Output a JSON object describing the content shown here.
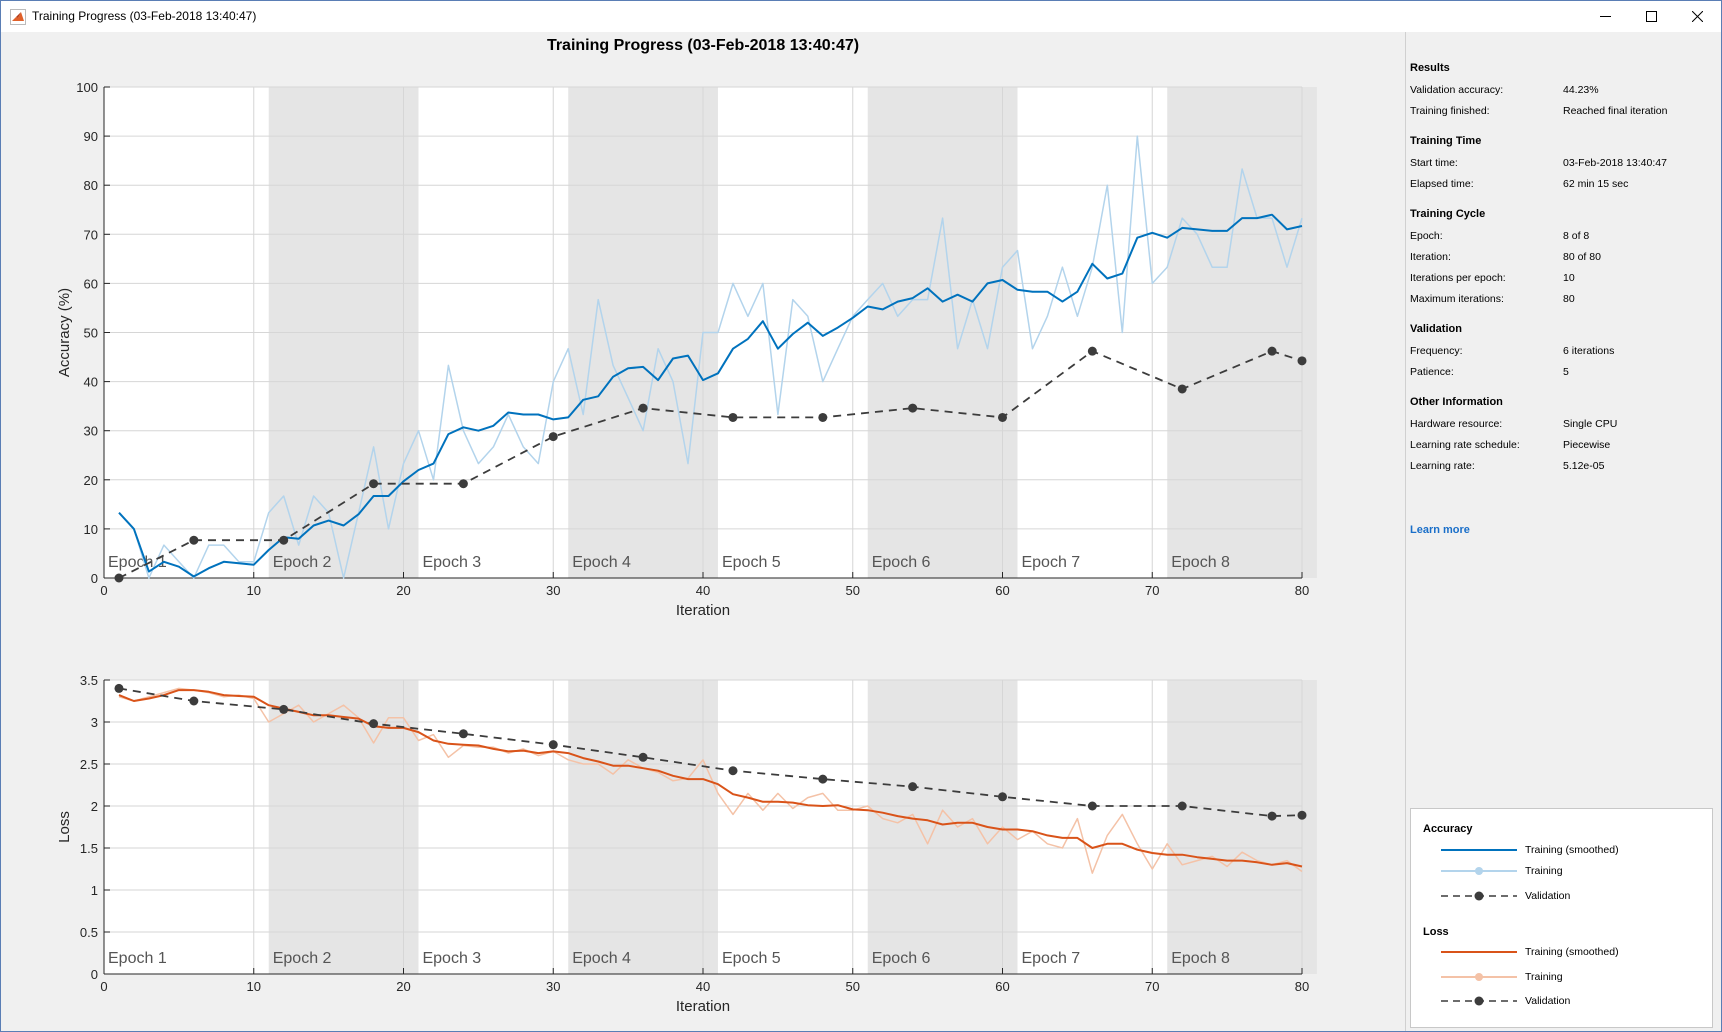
{
  "window": {
    "title": "Training Progress (03-Feb-2018 13:40:47)",
    "controls": {
      "minimize": "minimize",
      "maximize": "maximize",
      "close": "close"
    }
  },
  "figure_title": "Training Progress (03-Feb-2018 13:40:47)",
  "colors": {
    "accuracy_smoothed": "#0072bd",
    "accuracy_raw": "#b3d4ec",
    "loss_smoothed": "#d95319",
    "loss_raw": "#f4c2a7",
    "validation": "#3c3c3c",
    "epoch_shade": "#e5e5e5",
    "link": "#1a6fc9"
  },
  "panel": {
    "results": {
      "heading": "Results",
      "rows": [
        {
          "label": "Validation accuracy:",
          "value": "44.23%"
        },
        {
          "label": "Training finished:",
          "value": "Reached final iteration"
        }
      ]
    },
    "training_time": {
      "heading": "Training Time",
      "rows": [
        {
          "label": "Start time:",
          "value": "03-Feb-2018 13:40:47"
        },
        {
          "label": "Elapsed time:",
          "value": "62 min 15 sec"
        }
      ]
    },
    "training_cycle": {
      "heading": "Training Cycle",
      "rows": [
        {
          "label": "Epoch:",
          "value": "8 of 8"
        },
        {
          "label": "Iteration:",
          "value": "80 of 80"
        },
        {
          "label": "Iterations per epoch:",
          "value": "10"
        },
        {
          "label": "Maximum iterations:",
          "value": "80"
        }
      ]
    },
    "validation": {
      "heading": "Validation",
      "rows": [
        {
          "label": "Frequency:",
          "value": "6 iterations"
        },
        {
          "label": "Patience:",
          "value": "5"
        }
      ]
    },
    "other_information": {
      "heading": "Other Information",
      "rows": [
        {
          "label": "Hardware resource:",
          "value": "Single CPU"
        },
        {
          "label": "Learning rate schedule:",
          "value": "Piecewise"
        },
        {
          "label": "Learning rate:",
          "value": "5.12e-05"
        }
      ]
    },
    "learn_more": "Learn more"
  },
  "legend": {
    "accuracy_heading": "Accuracy",
    "loss_heading": "Loss",
    "accuracy_items": [
      "Training (smoothed)",
      "Training",
      "Validation"
    ],
    "loss_items": [
      "Training (smoothed)",
      "Training",
      "Validation"
    ]
  },
  "chart_data": [
    {
      "type": "line",
      "title": "",
      "xlabel": "Iteration",
      "ylabel": "Accuracy (%)",
      "xlim": [
        0,
        80
      ],
      "ylim": [
        0,
        100
      ],
      "xticks": [
        0,
        10,
        20,
        30,
        40,
        50,
        60,
        70,
        80
      ],
      "yticks": [
        0,
        10,
        20,
        30,
        40,
        50,
        60,
        70,
        80,
        90,
        100
      ],
      "ytick_labels": [
        "0",
        "10",
        "20",
        "30",
        "40",
        "50",
        "60",
        "70",
        "80",
        "90",
        "100"
      ],
      "grid": true,
      "epoch_labels": [
        "Epoch 1",
        "Epoch 2",
        "Epoch 3",
        "Epoch 4",
        "Epoch 5",
        "Epoch 6",
        "Epoch 7",
        "Epoch 8"
      ],
      "series": [
        {
          "name": "Training",
          "x": [
            1,
            2,
            3,
            4,
            5,
            6,
            7,
            8,
            9,
            10,
            11,
            12,
            13,
            14,
            15,
            16,
            17,
            18,
            19,
            20,
            21,
            22,
            23,
            24,
            25,
            26,
            27,
            28,
            29,
            30,
            31,
            32,
            33,
            34,
            35,
            36,
            37,
            38,
            39,
            40,
            41,
            42,
            43,
            44,
            45,
            46,
            47,
            48,
            49,
            50,
            51,
            52,
            53,
            54,
            55,
            56,
            57,
            58,
            59,
            60,
            61,
            62,
            63,
            64,
            65,
            66,
            67,
            68,
            69,
            70,
            71,
            72,
            73,
            74,
            75,
            76,
            77,
            78,
            79,
            80
          ],
          "values": [
            13.3,
            10,
            0,
            6.7,
            3.3,
            0,
            6.7,
            6.7,
            3.3,
            3.3,
            13.3,
            16.7,
            6.7,
            16.7,
            13.3,
            0,
            13.3,
            26.7,
            10,
            23.3,
            30,
            20,
            43.3,
            30,
            23.3,
            26.7,
            33.3,
            26.7,
            23.3,
            40,
            46.7,
            33.3,
            56.7,
            43.3,
            36.7,
            30,
            46.7,
            40,
            23.3,
            50,
            50,
            60,
            53.3,
            60,
            33.3,
            56.7,
            53.3,
            40,
            46.7,
            53.3,
            56.7,
            60,
            53.3,
            56.7,
            56.7,
            73.3,
            46.7,
            56.7,
            46.7,
            63.3,
            66.7,
            46.7,
            53.3,
            63.3,
            53.3,
            63.3,
            80,
            50,
            90,
            60,
            63.3,
            73.3,
            70,
            63.3,
            63.3,
            83.3,
            73.3,
            73.3,
            63.3,
            73.3
          ]
        },
        {
          "name": "Training (smoothed)",
          "x": [
            1,
            2,
            3,
            4,
            5,
            6,
            7,
            8,
            9,
            10,
            11,
            12,
            13,
            14,
            15,
            16,
            17,
            18,
            19,
            20,
            21,
            22,
            23,
            24,
            25,
            26,
            27,
            28,
            29,
            30,
            31,
            32,
            33,
            34,
            35,
            36,
            37,
            38,
            39,
            40,
            41,
            42,
            43,
            44,
            45,
            46,
            47,
            48,
            49,
            50,
            51,
            52,
            53,
            54,
            55,
            56,
            57,
            58,
            59,
            60,
            61,
            62,
            63,
            64,
            65,
            66,
            67,
            68,
            69,
            70,
            71,
            72,
            73,
            74,
            75,
            76,
            77,
            78,
            79,
            80
          ],
          "values": [
            13.3,
            10,
            1.3,
            3.3,
            2.3,
            0.3,
            2,
            3.3,
            3,
            2.7,
            5.7,
            8.3,
            8,
            10.7,
            11.7,
            10.7,
            13,
            16.7,
            16.7,
            19.7,
            22,
            23.3,
            29.3,
            30.7,
            30,
            31,
            33.7,
            33.3,
            33.3,
            32.3,
            32.7,
            36.3,
            37,
            41,
            42.7,
            43,
            40.3,
            44.7,
            45.3,
            40.3,
            41.7,
            46.7,
            48.7,
            52.3,
            46.7,
            49.7,
            52,
            49.3,
            51,
            53,
            55.3,
            54.7,
            56.3,
            57,
            59,
            56.3,
            57.7,
            56.3,
            60,
            60.7,
            58.7,
            58.3,
            58.3,
            56.3,
            58.3,
            64,
            61,
            62,
            69.3,
            70.3,
            69.3,
            71.3,
            71,
            70.7,
            70.7,
            73.3,
            73.3,
            74,
            71,
            71.7
          ]
        },
        {
          "name": "Validation",
          "x": [
            1,
            6,
            12,
            18,
            24,
            30,
            36,
            42,
            48,
            54,
            60,
            66,
            72,
            78,
            80
          ],
          "values": [
            0,
            7.7,
            7.7,
            19.2,
            19.2,
            28.8,
            34.6,
            32.7,
            32.7,
            34.6,
            32.7,
            46.2,
            38.5,
            46.2,
            44.23
          ]
        }
      ]
    },
    {
      "type": "line",
      "title": "",
      "xlabel": "Iteration",
      "ylabel": "Loss",
      "xlim": [
        0,
        80
      ],
      "ylim": [
        0,
        3.5
      ],
      "xticks": [
        0,
        10,
        20,
        30,
        40,
        50,
        60,
        70,
        80
      ],
      "yticks": [
        0,
        0.5,
        1,
        1.5,
        2,
        2.5,
        3,
        3.5
      ],
      "ytick_labels": [
        "0",
        "0.5",
        "1",
        "1.5",
        "2",
        "2.5",
        "3",
        "3.5"
      ],
      "grid": true,
      "epoch_labels": [
        "Epoch 1",
        "Epoch 2",
        "Epoch 3",
        "Epoch 4",
        "Epoch 5",
        "Epoch 6",
        "Epoch 7",
        "Epoch 8"
      ],
      "series": [
        {
          "name": "Training",
          "x": [
            1,
            2,
            3,
            4,
            5,
            6,
            7,
            8,
            9,
            10,
            11,
            12,
            13,
            14,
            15,
            16,
            17,
            18,
            19,
            20,
            21,
            22,
            23,
            24,
            25,
            26,
            27,
            28,
            29,
            30,
            31,
            32,
            33,
            34,
            35,
            36,
            37,
            38,
            39,
            40,
            41,
            42,
            43,
            44,
            45,
            46,
            47,
            48,
            49,
            50,
            51,
            52,
            53,
            54,
            55,
            56,
            57,
            58,
            59,
            60,
            61,
            62,
            63,
            64,
            65,
            66,
            67,
            68,
            69,
            70,
            71,
            72,
            73,
            74,
            75,
            76,
            77,
            78,
            79,
            80
          ],
          "values": [
            3.3,
            3.25,
            3.3,
            3.35,
            3.4,
            3.38,
            3.35,
            3.3,
            3.32,
            3.28,
            3.0,
            3.1,
            3.2,
            3.0,
            3.1,
            3.2,
            3.05,
            2.75,
            3.05,
            3.05,
            2.78,
            2.85,
            2.58,
            2.72,
            2.7,
            2.7,
            2.63,
            2.68,
            2.6,
            2.65,
            2.55,
            2.5,
            2.5,
            2.38,
            2.55,
            2.45,
            2.4,
            2.3,
            2.33,
            2.55,
            2.15,
            1.9,
            2.15,
            1.95,
            2.15,
            1.97,
            2.1,
            2.15,
            1.95,
            1.95,
            2.0,
            1.85,
            1.8,
            1.9,
            1.55,
            1.95,
            1.75,
            1.85,
            1.55,
            1.75,
            1.6,
            1.7,
            1.55,
            1.5,
            1.85,
            1.2,
            1.65,
            1.9,
            1.55,
            1.25,
            1.55,
            1.3,
            1.35,
            1.4,
            1.28,
            1.45,
            1.35,
            1.3,
            1.35,
            1.22
          ]
        },
        {
          "name": "Training (smoothed)",
          "x": [
            1,
            2,
            3,
            4,
            5,
            6,
            7,
            8,
            9,
            10,
            11,
            12,
            13,
            14,
            15,
            16,
            17,
            18,
            19,
            20,
            21,
            22,
            23,
            24,
            25,
            26,
            27,
            28,
            29,
            30,
            31,
            32,
            33,
            34,
            35,
            36,
            37,
            38,
            39,
            40,
            41,
            42,
            43,
            44,
            45,
            46,
            47,
            48,
            49,
            50,
            51,
            52,
            53,
            54,
            55,
            56,
            57,
            58,
            59,
            60,
            61,
            62,
            63,
            64,
            65,
            66,
            67,
            68,
            69,
            70,
            71,
            72,
            73,
            74,
            75,
            76,
            77,
            78,
            79,
            80
          ],
          "values": [
            3.32,
            3.25,
            3.28,
            3.32,
            3.38,
            3.38,
            3.36,
            3.32,
            3.31,
            3.3,
            3.2,
            3.16,
            3.12,
            3.08,
            3.08,
            3.06,
            3.04,
            2.95,
            2.93,
            2.93,
            2.88,
            2.78,
            2.74,
            2.73,
            2.72,
            2.68,
            2.65,
            2.66,
            2.63,
            2.65,
            2.63,
            2.57,
            2.53,
            2.48,
            2.48,
            2.45,
            2.42,
            2.36,
            2.32,
            2.32,
            2.26,
            2.14,
            2.1,
            2.05,
            2.05,
            2.04,
            2.01,
            2.0,
            2.01,
            1.96,
            1.95,
            1.92,
            1.88,
            1.85,
            1.83,
            1.78,
            1.8,
            1.8,
            1.75,
            1.72,
            1.72,
            1.7,
            1.65,
            1.62,
            1.62,
            1.5,
            1.55,
            1.55,
            1.48,
            1.44,
            1.42,
            1.42,
            1.39,
            1.37,
            1.35,
            1.35,
            1.33,
            1.3,
            1.32,
            1.28
          ]
        },
        {
          "name": "Validation",
          "x": [
            1,
            6,
            12,
            18,
            24,
            30,
            36,
            42,
            48,
            54,
            60,
            66,
            72,
            78,
            80
          ],
          "values": [
            3.4,
            3.25,
            3.15,
            2.98,
            2.86,
            2.73,
            2.58,
            2.42,
            2.32,
            2.23,
            2.11,
            2.0,
            2.0,
            1.88,
            1.89
          ]
        }
      ]
    }
  ]
}
